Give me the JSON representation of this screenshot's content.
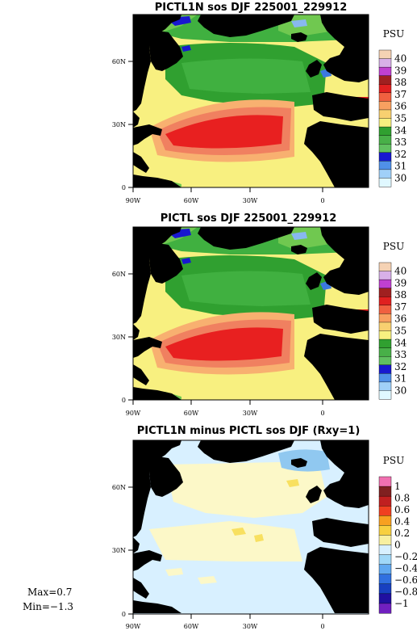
{
  "panels": [
    {
      "title": "PICTL1N sos DJF 225001_229912",
      "unit": "PSU",
      "colorbar": [
        "40",
        "39",
        "38",
        "37",
        "36",
        "35",
        "34",
        "33",
        "32",
        "31",
        "30"
      ],
      "colors": [
        "#f5d2b4",
        "#b030c8",
        "#d040d8",
        "#b02828",
        "#e82020",
        "#f08060",
        "#f8b070",
        "#f8f080",
        "#30a030",
        "#40b040",
        "#70c850",
        "#1818d0",
        "#3c78e0",
        "#88b8f0",
        "#d0f0ff"
      ],
      "x_ticks": [
        "90W",
        "60W",
        "30W",
        "0"
      ],
      "y_ticks": [
        "0",
        "30N",
        "60N"
      ]
    },
    {
      "title": "PICTL sos DJF 225001_229912",
      "unit": "PSU",
      "colorbar": [
        "40",
        "39",
        "38",
        "37",
        "36",
        "35",
        "34",
        "33",
        "32",
        "31",
        "30"
      ],
      "x_ticks": [
        "90W",
        "60W",
        "30W",
        "0"
      ],
      "y_ticks": [
        "0",
        "30N",
        "60N"
      ]
    },
    {
      "title": "PICTL1N minus PICTL sos DJF (Rxy=1)",
      "unit": "PSU",
      "colorbar": [
        "1",
        "0.8",
        "0.6",
        "0.4",
        "0.2",
        "0",
        "−0.2",
        "−0.4",
        "−0.6",
        "−0.8",
        "−1"
      ],
      "x_ticks": [
        "90W",
        "60W",
        "30W",
        "0"
      ],
      "y_ticks": [
        "0",
        "30N",
        "60N"
      ]
    }
  ],
  "stats": {
    "max": "Max=0.7",
    "min": "Min=−1.3"
  },
  "colors": {
    "land": "#000000",
    "salty_core": "#e82020",
    "salty_ring": "#f08060",
    "salt_mid": "#f8b070",
    "salt_yellow": "#f8f080",
    "fresh_green": "#40a040",
    "fresh_light_green": "#70c850",
    "fresh_blue": "#1818d0",
    "diff_light": "#d8f0ff",
    "diff_pale": "#fcf8c8",
    "diff_blue": "#90c8f0",
    "diff_yellow": "#f8e060"
  }
}
